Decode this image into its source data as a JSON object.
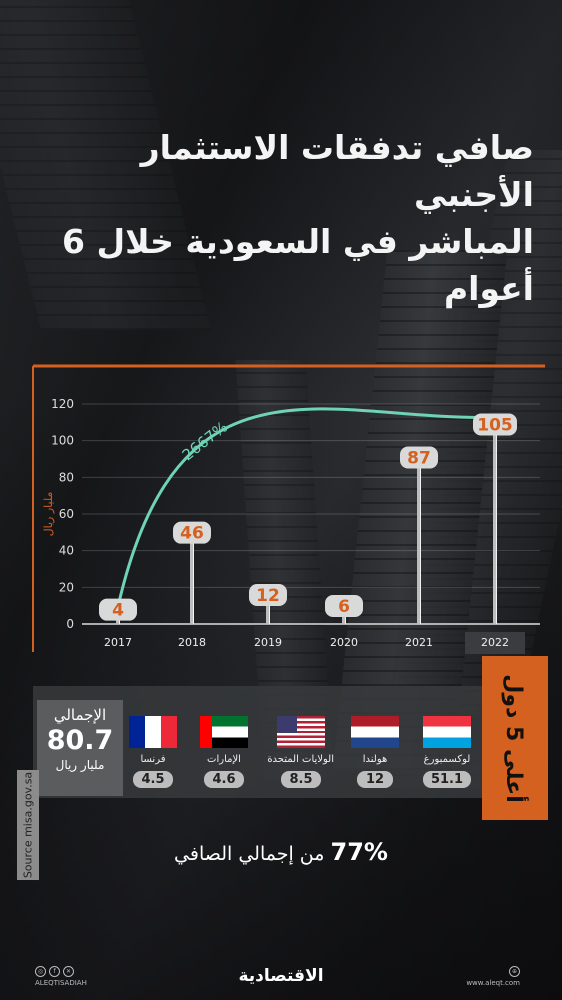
{
  "title_lines": [
    "صافي تدفقات الاستثمار الأجنبي",
    "المباشر في السعودية خلال 6 أعوام"
  ],
  "colors": {
    "accent": "#d4611f",
    "curve": "#6fd3b5",
    "bubble": "#d9d9d9",
    "value_text": "#d4611f"
  },
  "chart_data": {
    "type": "bar",
    "categories": [
      "2017",
      "2018",
      "2019",
      "2020",
      "2021",
      "2022"
    ],
    "values": [
      4,
      46,
      12,
      6,
      87,
      105
    ],
    "ylabel": "مليار ريال",
    "ylim": [
      0,
      120
    ],
    "yticks": [
      0,
      20,
      40,
      60,
      80,
      100,
      120
    ],
    "annotation": "2667%",
    "grid": true
  },
  "top5": {
    "side_label": "أعلى 5 دول",
    "total_label": "الإجمالي",
    "total_value": "80.7",
    "total_unit": "مليار ريال",
    "countries": [
      {
        "name": "لوكسمبورغ",
        "value": "51.1",
        "flag": "luxembourg-flag"
      },
      {
        "name": "هولندا",
        "value": "12",
        "flag": "netherlands-flag"
      },
      {
        "name": "الولايات المتحدة",
        "value": "8.5",
        "flag": "usa-flag"
      },
      {
        "name": "الإمارات",
        "value": "4.6",
        "flag": "uae-flag"
      },
      {
        "name": "فرنسا",
        "value": "4.5",
        "flag": "france-flag"
      }
    ]
  },
  "share": {
    "percent": "77%",
    "text": "من إجمالي الصافي"
  },
  "source": "Source misa.gov.sa",
  "footer": {
    "handle": "ALEQTISADIAH",
    "logo": "الاقتصادية",
    "website": "www.aleqt.com"
  }
}
